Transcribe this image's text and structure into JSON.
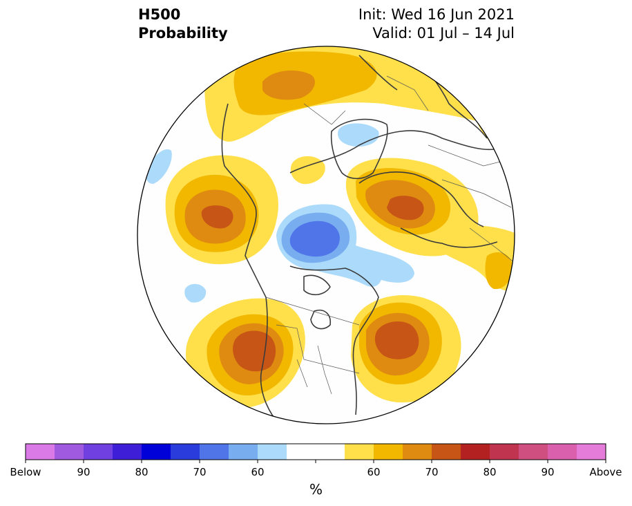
{
  "header": {
    "variable": "H500",
    "product": "Probability",
    "init": "Init: Wed 16 Jun 2021",
    "valid": "Valid: 01 Jul – 14 Jul"
  },
  "colorbar": {
    "unit": "%",
    "below_label": "Below",
    "above_label": "Above",
    "below_ticks": [
      "90",
      "80",
      "70",
      "60"
    ],
    "above_ticks": [
      "60",
      "70",
      "80",
      "90"
    ],
    "colors": [
      "#d97ae6",
      "#a05ae0",
      "#7040e0",
      "#3f1ed8",
      "#0000d8",
      "#2a3ddc",
      "#4f75e8",
      "#78aef0",
      "#abdafa",
      "#ffffff",
      "#ffffff",
      "#ffe04a",
      "#f2b800",
      "#df8a10",
      "#c65516",
      "#b32220",
      "#c13450",
      "#cf4f80",
      "#da60ae",
      "#e67cda"
    ]
  },
  "anomaly_features": [
    {
      "name": "eastern-pacific-ridge",
      "category": "above",
      "level": 70
    },
    {
      "name": "western-north-america-ridge",
      "category": "above",
      "level": 70
    },
    {
      "name": "north-atlantic-ridge",
      "category": "above",
      "level": 70
    },
    {
      "name": "northern-europe-ridge",
      "category": "above",
      "level": 70
    },
    {
      "name": "eastern-siberia-ridge",
      "category": "above",
      "level": 65
    },
    {
      "name": "arctic-canada-trough",
      "category": "below",
      "level": 70
    },
    {
      "name": "greenland-trough",
      "category": "below",
      "level": 60
    }
  ],
  "colors": {
    "background": "#ffffff",
    "coastline": "#3b3b3b",
    "ocean_map_fill": "#fdfefd"
  }
}
